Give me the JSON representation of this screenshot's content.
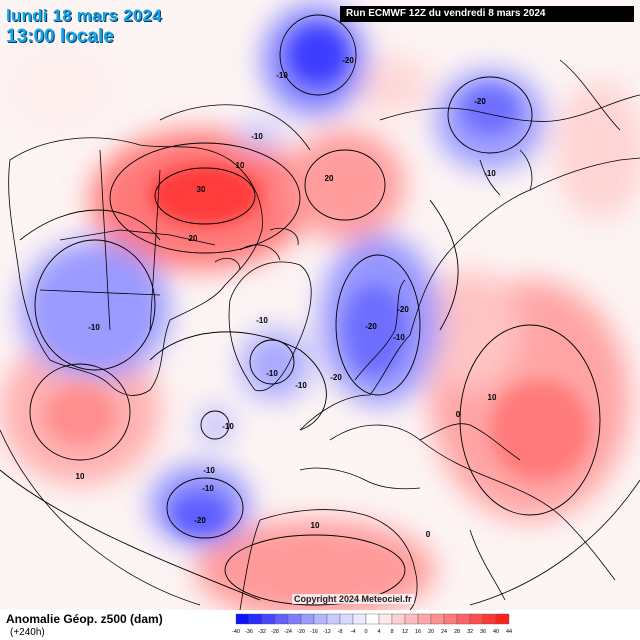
{
  "header": {
    "date": "lundi 18 mars 2024",
    "time": "13:00 locale",
    "run": "Run ECMWF 12Z du vendredi 8 mars 2024"
  },
  "footer": {
    "variable": "Anomalie Géop. z500 (dam)",
    "lead": "(+240h)",
    "copyright": "Copyright 2024 Meteociel.fr"
  },
  "colorbar": {
    "labels": [
      "-40",
      "-36",
      "-32",
      "-28",
      "-24",
      "-20",
      "-16",
      "-12",
      "-8",
      "-4",
      "0",
      "4",
      "8",
      "12",
      "16",
      "20",
      "24",
      "28",
      "32",
      "36",
      "40",
      "44"
    ],
    "colors": [
      "#1010ff",
      "#2a2aff",
      "#4646ff",
      "#6262ff",
      "#7e7eff",
      "#9a9aff",
      "#b6b6ff",
      "#c9c9ff",
      "#dadaff",
      "#ebebff",
      "#ffffff",
      "#ffe8e8",
      "#ffd2d2",
      "#ffbcbc",
      "#ffa6a6",
      "#ff9090",
      "#ff7a7a",
      "#ff6464",
      "#ff4e4e",
      "#ff3838",
      "#ff2020"
    ]
  },
  "contour_labels": [
    {
      "id": "c1",
      "text": "-10"
    },
    {
      "id": "c2",
      "text": "-20"
    },
    {
      "id": "c3",
      "text": "-20"
    },
    {
      "id": "c4",
      "text": "-10"
    },
    {
      "id": "c5",
      "text": "-10"
    },
    {
      "id": "c6",
      "text": "10"
    },
    {
      "id": "c7",
      "text": "30"
    },
    {
      "id": "c8",
      "text": "20"
    },
    {
      "id": "c9",
      "text": "20"
    },
    {
      "id": "c10",
      "text": "-10"
    },
    {
      "id": "c11",
      "text": "-10"
    },
    {
      "id": "c12",
      "text": "-10"
    },
    {
      "id": "c13",
      "text": "-10"
    },
    {
      "id": "c14",
      "text": "-20"
    },
    {
      "id": "c15",
      "text": "-20"
    },
    {
      "id": "c16",
      "text": "-20"
    },
    {
      "id": "c17",
      "text": "-10"
    },
    {
      "id": "c18",
      "text": "0"
    },
    {
      "id": "c19",
      "text": "10"
    },
    {
      "id": "c20",
      "text": "-10"
    },
    {
      "id": "c21",
      "text": "-10"
    },
    {
      "id": "c22",
      "text": "-10"
    },
    {
      "id": "c23",
      "text": "-20"
    },
    {
      "id": "c24",
      "text": "10"
    },
    {
      "id": "c25",
      "text": "10"
    },
    {
      "id": "c26",
      "text": "0"
    }
  ]
}
